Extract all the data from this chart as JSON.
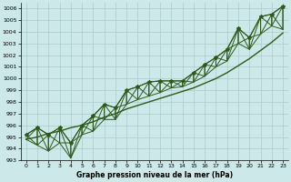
{
  "title": "Graphe pression niveau de la mer (hPa)",
  "bg_color": "#cce8e8",
  "grid_color": "#aacccc",
  "line_color": "#2d5a1b",
  "xlim": [
    -0.5,
    23.5
  ],
  "ylim": [
    993,
    1006.5
  ],
  "yticks": [
    993,
    994,
    995,
    996,
    997,
    998,
    999,
    1000,
    1001,
    1002,
    1003,
    1004,
    1005,
    1006
  ],
  "xticks": [
    0,
    1,
    2,
    3,
    4,
    5,
    6,
    7,
    8,
    9,
    10,
    11,
    12,
    13,
    14,
    15,
    16,
    17,
    18,
    19,
    20,
    21,
    22,
    23
  ],
  "peak_values": [
    995.2,
    995.8,
    995.2,
    995.8,
    994.5,
    996.0,
    996.8,
    997.8,
    997.5,
    999.0,
    999.3,
    999.7,
    999.8,
    999.8,
    999.8,
    1000.5,
    1001.2,
    1001.8,
    1002.5,
    1004.3,
    1003.5,
    1005.3,
    1005.5,
    1006.2
  ],
  "valley_values": [
    994.8,
    994.3,
    993.8,
    994.5,
    993.2,
    995.2,
    995.5,
    996.5,
    996.5,
    997.8,
    998.2,
    998.5,
    998.8,
    999.2,
    999.3,
    999.7,
    1000.2,
    1001.0,
    1001.5,
    1003.0,
    1002.5,
    1003.8,
    1004.5,
    1004.2
  ],
  "trend_values": [
    994.8,
    995.0,
    995.3,
    995.5,
    995.8,
    996.0,
    996.3,
    996.7,
    997.0,
    997.4,
    997.7,
    998.0,
    998.3,
    998.6,
    998.9,
    999.2,
    999.6,
    1000.0,
    1000.5,
    1001.1,
    1001.7,
    1002.4,
    1003.1,
    1003.9
  ]
}
